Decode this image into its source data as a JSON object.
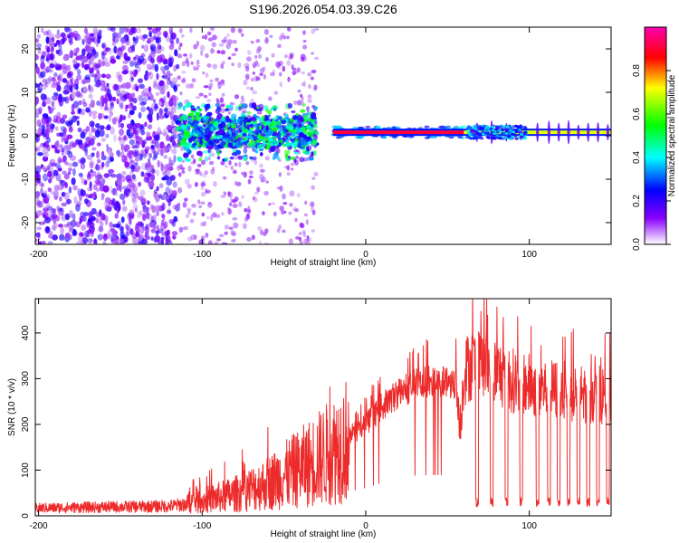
{
  "figure_title": "S196.2026.054.03.39.C26",
  "chart_data": [
    {
      "type": "heatmap",
      "name": "spectrogram",
      "xlabel": "Height of straight line (km)",
      "ylabel": "Frequency (Hz)",
      "xlim": [
        -202,
        150
      ],
      "ylim": [
        -25,
        25
      ],
      "xticks": [
        -200,
        -100,
        0,
        100
      ],
      "yticks": [
        -20,
        -10,
        0,
        10,
        20
      ],
      "colorbar": {
        "label": "Normalized spectral amplitude",
        "range": [
          0,
          1
        ],
        "ticks": [
          0.0,
          0.2,
          0.4,
          0.6,
          0.8
        ],
        "colormap": [
          "#d8d0e8",
          "#8800ff",
          "#0000ff",
          "#00ffff",
          "#00ff00",
          "#ffff00",
          "#ff0000",
          "#ff00c0"
        ]
      },
      "carrier_frequency": 0.8,
      "regions": [
        {
          "x_range": [
            -202,
            -115
          ],
          "description": "diffuse noise",
          "amplitude_approx": 0.15
        },
        {
          "x_range": [
            -115,
            -30
          ],
          "description": "noisy signal near 0 Hz",
          "amplitude_approx": 0.35
        },
        {
          "x_range": [
            -20,
            60
          ],
          "description": "strong narrow carrier",
          "amplitude_approx": 0.9
        },
        {
          "x_range": [
            60,
            150
          ],
          "description": "signal with periodic dropouts",
          "amplitude_approx": 0.7
        }
      ]
    },
    {
      "type": "line",
      "name": "snr",
      "xlabel": "Height of straight line (km)",
      "ylabel": "SNR (10 * v/v)",
      "xlim": [
        -202,
        150
      ],
      "ylim": [
        0,
        475
      ],
      "xticks": [
        -200,
        -100,
        0,
        100
      ],
      "yticks": [
        0,
        100,
        200,
        300,
        400
      ],
      "color": "#ee2b2b",
      "profile_x": [
        -202,
        -120,
        -100,
        -80,
        -60,
        -40,
        -20,
        -10,
        0,
        10,
        20,
        30,
        40,
        50,
        55,
        58,
        60,
        65,
        75,
        90,
        110,
        130,
        150
      ],
      "profile_y": [
        20,
        25,
        35,
        50,
        75,
        110,
        150,
        180,
        205,
        245,
        275,
        295,
        300,
        300,
        300,
        220,
        340,
        360,
        350,
        320,
        300,
        290,
        285
      ],
      "dropouts_x": [
        68,
        77,
        86,
        95,
        105,
        112,
        118,
        124,
        130,
        136,
        142,
        148
      ]
    }
  ]
}
